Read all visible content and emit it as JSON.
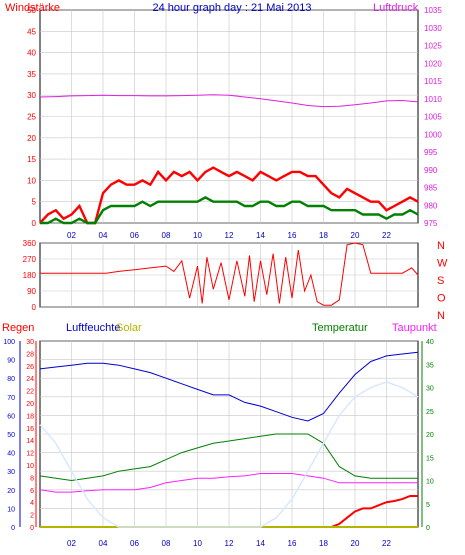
{
  "colors": {
    "background": "#ffffff",
    "plot_bg": "#ffffff",
    "grid": "#c8c8c8",
    "frame": "#000000",
    "windspeed": "#ff0000",
    "gust": "#ff0000",
    "wind_green": "#008000",
    "pressure": "#e020e0",
    "direction": "#ff0000",
    "rain": "#ff0000",
    "humidity": "#0000d0",
    "solar": "#b4b400",
    "temperature": "#008000",
    "dewpoint": "#ff20ff",
    "uv_light": "#d8e8ff"
  },
  "chart_data": [
    {
      "type": "line",
      "title": "24 hour graph day : 21 Mai 2013",
      "ylabel_left": "Windstärke",
      "ylabel_right": "Luftdruck",
      "xlim": [
        0,
        24
      ],
      "x_ticks": [
        "02",
        "04",
        "06",
        "08",
        "10",
        "12",
        "14",
        "16",
        "18",
        "20",
        "22"
      ],
      "ylim_left": [
        0,
        50
      ],
      "y_ticks_left": [
        "0",
        "5",
        "10",
        "15",
        "20",
        "25",
        "30",
        "35",
        "40",
        "45",
        "50"
      ],
      "ylim_right": [
        975,
        1035
      ],
      "y_ticks_right": [
        "975",
        "980",
        "985",
        "990",
        "995",
        "1000",
        "1005",
        "1010",
        "1015",
        "1020",
        "1025",
        "1030",
        "1035"
      ],
      "grid": true,
      "series": [
        {
          "name": "Luftdruck",
          "axis": "right",
          "x": [
            0,
            1,
            2,
            3,
            4,
            5,
            6,
            7,
            8,
            9,
            10,
            11,
            12,
            13,
            14,
            15,
            16,
            17,
            18,
            19,
            20,
            21,
            22,
            23,
            24
          ],
          "y": [
            1010.5,
            1010.6,
            1010.8,
            1010.9,
            1011.0,
            1010.9,
            1010.9,
            1010.8,
            1010.8,
            1010.9,
            1011.0,
            1011.1,
            1011.0,
            1010.5,
            1010.0,
            1009.4,
            1008.8,
            1008.1,
            1007.8,
            1007.9,
            1008.3,
            1008.8,
            1009.4,
            1009.5,
            1009.1
          ]
        },
        {
          "name": "",
          "role": "gust",
          "axis": "left",
          "x": [
            0,
            0.5,
            1,
            1.5,
            2,
            2.5,
            3,
            3.5,
            4,
            4.5,
            5,
            5.5,
            6,
            6.5,
            7,
            7.5,
            8,
            8.5,
            9,
            9.5,
            10,
            10.5,
            11,
            11.5,
            12,
            12.5,
            13,
            13.5,
            14,
            14.5,
            15,
            15.5,
            16,
            16.5,
            17,
            17.5,
            18,
            18.5,
            19,
            19.5,
            20,
            20.5,
            21,
            21.5,
            22,
            22.5,
            23,
            23.5,
            24
          ],
          "y": [
            0,
            2,
            3,
            1,
            2,
            4,
            0,
            0,
            7,
            9,
            10,
            9,
            9,
            10,
            9,
            12,
            10,
            12,
            11,
            12,
            10,
            12,
            13,
            12,
            11,
            12,
            11,
            10,
            12,
            11,
            10,
            11,
            12,
            12,
            11,
            11,
            9,
            7,
            6,
            8,
            7,
            6,
            5,
            5,
            3,
            4,
            5,
            6,
            5
          ]
        },
        {
          "name": "",
          "role": "mean",
          "axis": "left",
          "x": [
            0,
            0.5,
            1,
            1.5,
            2,
            2.5,
            3,
            3.5,
            4,
            4.5,
            5,
            5.5,
            6,
            6.5,
            7,
            7.5,
            8,
            8.5,
            9,
            9.5,
            10,
            10.5,
            11,
            11.5,
            12,
            12.5,
            13,
            13.5,
            14,
            14.5,
            15,
            15.5,
            16,
            16.5,
            17,
            17.5,
            18,
            18.5,
            19,
            19.5,
            20,
            20.5,
            21,
            21.5,
            22,
            22.5,
            23,
            23.5,
            24
          ],
          "y": [
            0,
            0,
            1,
            0,
            0,
            1,
            0,
            0,
            3,
            4,
            4,
            4,
            4,
            5,
            4,
            5,
            5,
            5,
            5,
            5,
            5,
            6,
            5,
            5,
            5,
            5,
            4,
            4,
            5,
            5,
            4,
            4,
            5,
            5,
            4,
            4,
            4,
            3,
            3,
            3,
            3,
            2,
            2,
            2,
            1,
            2,
            2,
            3,
            2
          ]
        }
      ]
    },
    {
      "type": "line",
      "ylabel_right_compass": [
        "N",
        "W",
        "S",
        "O",
        "N"
      ],
      "xlim": [
        0,
        24
      ],
      "ylim": [
        0,
        360
      ],
      "y_ticks": [
        "0",
        "90",
        "180",
        "270",
        "360"
      ],
      "grid": true,
      "series": [
        {
          "name": "",
          "role": "wind direction",
          "x": [
            0,
            0.2,
            0.5,
            1,
            2,
            3,
            3.8,
            4.2,
            5,
            6,
            7,
            8,
            8.5,
            9,
            9.5,
            10,
            10.3,
            10.6,
            11,
            11.5,
            12,
            12.5,
            13,
            13.3,
            13.6,
            14,
            14.4,
            14.8,
            15.2,
            15.6,
            16,
            16.4,
            16.8,
            17.2,
            17.6,
            18,
            18.5,
            19,
            19.5,
            20,
            20.5,
            21,
            22,
            23,
            23.6,
            24
          ],
          "y": [
            190,
            190,
            190,
            190,
            190,
            190,
            190,
            190,
            200,
            210,
            220,
            230,
            200,
            260,
            50,
            230,
            20,
            280,
            100,
            250,
            40,
            260,
            60,
            290,
            30,
            260,
            70,
            300,
            20,
            280,
            50,
            320,
            90,
            180,
            30,
            10,
            10,
            40,
            350,
            360,
            350,
            190,
            190,
            190,
            220,
            180
          ]
        }
      ]
    },
    {
      "type": "line",
      "ylabel_rain": "Regen",
      "ylabel_humidity": "Luftfeuchte",
      "ylabel_solar": "Solar",
      "ylabel_temperature": "Temperatur",
      "ylabel_dewpoint": "Taupunkt",
      "xlim": [
        0,
        24
      ],
      "x_ticks": [
        "02",
        "04",
        "06",
        "08",
        "10",
        "12",
        "14",
        "16",
        "18",
        "20",
        "22"
      ],
      "ylim_humidity": [
        0,
        100
      ],
      "y_ticks_humidity": [
        "0",
        "10",
        "20",
        "30",
        "40",
        "50",
        "60",
        "70",
        "80",
        "90",
        "100"
      ],
      "ylim_rain": [
        0,
        30
      ],
      "y_ticks_rain": [
        "0",
        "2",
        "4",
        "6",
        "8",
        "10",
        "12",
        "14",
        "16",
        "18",
        "20",
        "22",
        "24",
        "26",
        "28",
        "30"
      ],
      "ylim_temperature": [
        0,
        40
      ],
      "y_ticks_temperature": [
        "0",
        "5",
        "10",
        "15",
        "20",
        "25",
        "30",
        "35",
        "40"
      ],
      "grid": true,
      "series": [
        {
          "name": "Luftfeuchte",
          "axis": "humidity",
          "x": [
            0,
            1,
            2,
            3,
            4,
            5,
            6,
            7,
            8,
            9,
            10,
            11,
            12,
            13,
            14,
            15,
            16,
            17,
            18,
            19,
            20,
            21,
            22,
            23,
            24
          ],
          "y": [
            85,
            86,
            87,
            88,
            88,
            87,
            85,
            83,
            80,
            77,
            74,
            71,
            71,
            67,
            65,
            62,
            59,
            57,
            61,
            72,
            82,
            89,
            92,
            93,
            94
          ]
        },
        {
          "name": "Temperatur",
          "axis": "temperature",
          "x": [
            0,
            1,
            2,
            3,
            4,
            5,
            6,
            7,
            8,
            9,
            10,
            11,
            12,
            13,
            14,
            15,
            16,
            17,
            18,
            19,
            20,
            21,
            22,
            23,
            24
          ],
          "y": [
            11,
            10.5,
            10,
            10.5,
            11,
            12,
            12.5,
            13,
            14.5,
            16,
            17,
            18,
            18.5,
            19,
            19.5,
            20,
            20,
            20,
            18,
            13,
            11,
            10.5,
            10.5,
            10.5,
            10.5
          ]
        },
        {
          "name": "Taupunkt",
          "axis": "temperature",
          "x": [
            0,
            1,
            2,
            3,
            4,
            5,
            6,
            7,
            8,
            9,
            10,
            11,
            12,
            13,
            14,
            15,
            16,
            17,
            18,
            19,
            20,
            21,
            22,
            23,
            24
          ],
          "y": [
            8,
            7.5,
            7.5,
            7.8,
            8,
            8,
            8,
            8.5,
            9.5,
            10,
            10.5,
            10.5,
            10.8,
            11,
            11.5,
            11.5,
            11.5,
            11,
            10.5,
            9.5,
            9.5,
            9.5,
            9.5,
            9.5,
            9.5
          ]
        },
        {
          "name": "Regen",
          "axis": "rain",
          "x": [
            0,
            18.5,
            19,
            19.5,
            20,
            20.5,
            21,
            21.5,
            22,
            22.5,
            23,
            23.5,
            24
          ],
          "y": [
            0,
            0,
            0.5,
            1.5,
            2.5,
            3,
            3,
            3.5,
            4,
            4.2,
            4.5,
            5,
            5
          ]
        },
        {
          "name": "Solar",
          "axis": "humidity",
          "x": [
            0,
            24
          ],
          "y": [
            0,
            0
          ]
        },
        {
          "name": "",
          "role": "light curve",
          "axis": "humidity",
          "x": [
            0,
            1,
            2,
            3,
            4,
            5,
            6,
            7,
            8,
            9,
            10,
            11,
            12,
            13,
            14,
            15,
            16,
            17,
            18,
            19,
            20,
            21,
            22,
            23,
            24
          ],
          "y": [
            55,
            45,
            30,
            15,
            5,
            0,
            0,
            0,
            0,
            0,
            0,
            0,
            0,
            0,
            0,
            5,
            15,
            30,
            45,
            60,
            70,
            75,
            78,
            75,
            70
          ]
        }
      ]
    }
  ]
}
